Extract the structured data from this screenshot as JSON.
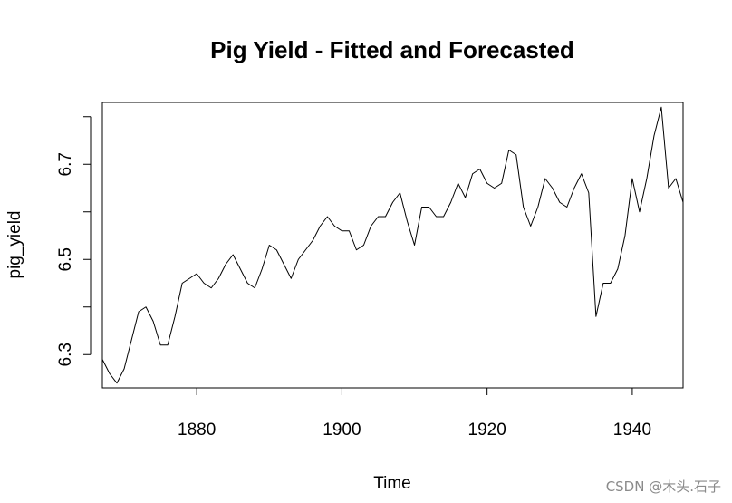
{
  "chart_data": {
    "type": "line",
    "title": "Pig Yield - Fitted and Forecasted",
    "xlabel": "Time",
    "ylabel": "pig_yield",
    "xlim": [
      1867,
      1947
    ],
    "ylim": [
      6.23,
      6.83
    ],
    "x_ticks": [
      1880,
      1900,
      1920,
      1940
    ],
    "y_ticks": [
      6.3,
      6.5,
      6.7
    ],
    "grid": false,
    "legend": "none",
    "line_color": "#000000",
    "series": [
      {
        "x": [
          1867,
          1868,
          1869,
          1870,
          1871,
          1872,
          1873,
          1874,
          1875,
          1876,
          1877,
          1878,
          1879,
          1880,
          1881,
          1882,
          1883,
          1884,
          1885,
          1886,
          1887,
          1888,
          1889,
          1890,
          1891,
          1892,
          1893,
          1894,
          1895,
          1896,
          1897,
          1898,
          1899,
          1900,
          1901,
          1902,
          1903,
          1904,
          1905,
          1906,
          1907,
          1908,
          1909,
          1910,
          1911,
          1912,
          1913,
          1914,
          1915,
          1916,
          1917,
          1918,
          1919,
          1920,
          1921,
          1922,
          1923,
          1924,
          1925,
          1926,
          1927,
          1928,
          1929,
          1930,
          1931,
          1932,
          1933,
          1934,
          1935,
          1936,
          1937,
          1938,
          1939,
          1940,
          1941,
          1942,
          1943,
          1944,
          1945,
          1946,
          1947
        ],
        "values": [
          6.29,
          6.26,
          6.24,
          6.27,
          6.33,
          6.39,
          6.4,
          6.37,
          6.32,
          6.32,
          6.38,
          6.45,
          6.46,
          6.47,
          6.45,
          6.44,
          6.46,
          6.49,
          6.51,
          6.48,
          6.45,
          6.44,
          6.48,
          6.53,
          6.52,
          6.49,
          6.46,
          6.5,
          6.52,
          6.54,
          6.57,
          6.59,
          6.57,
          6.56,
          6.56,
          6.52,
          6.53,
          6.57,
          6.59,
          6.59,
          6.62,
          6.64,
          6.58,
          6.53,
          6.61,
          6.61,
          6.59,
          6.59,
          6.62,
          6.66,
          6.63,
          6.68,
          6.69,
          6.66,
          6.65,
          6.66,
          6.73,
          6.72,
          6.61,
          6.57,
          6.61,
          6.67,
          6.65,
          6.62,
          6.61,
          6.65,
          6.68,
          6.64,
          6.38,
          6.45,
          6.45,
          6.48,
          6.55,
          6.67,
          6.6,
          6.67,
          6.76,
          6.82,
          6.65,
          6.67,
          6.62
        ]
      }
    ]
  },
  "watermark": "CSDN @木头.石子"
}
